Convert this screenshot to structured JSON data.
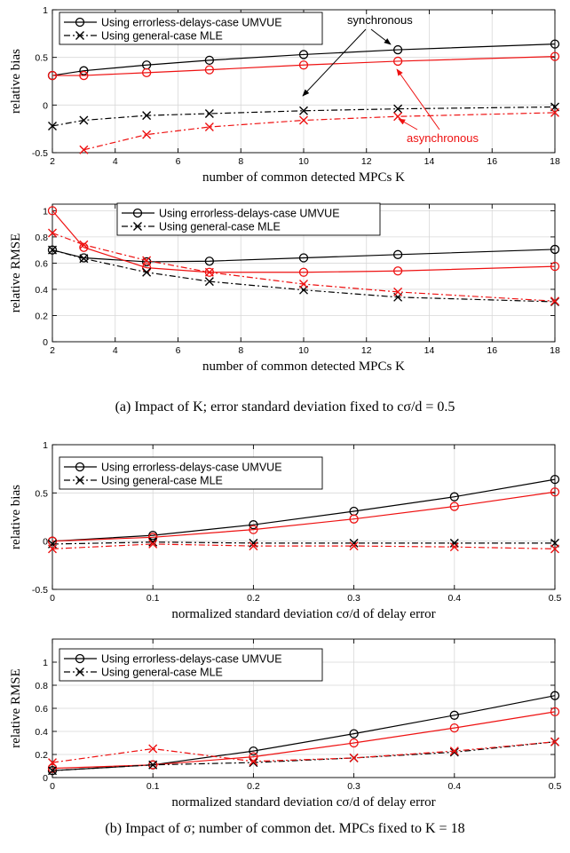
{
  "colors": {
    "synchronous": "#000000",
    "asynchronous": "#ee1111",
    "grid": "#d8d8d8"
  },
  "legend": {
    "umvue": "Using errorless-delays-case UMVUE",
    "mle": "Using general-case MLE"
  },
  "annotations": {
    "synchronous": "synchronous",
    "asynchronous": "asynchronous"
  },
  "captions": {
    "a": "(a) Impact of K; error standard deviation fixed to cσ/d = 0.5",
    "b": "(b) Impact of σ; number of common det. MPCs fixed to K = 18"
  },
  "chart_data": [
    {
      "type": "line",
      "xlabel": "number of common detected MPCs K",
      "ylabel": "relative bias",
      "xlim": [
        2,
        18
      ],
      "ylim": [
        -0.5,
        1
      ],
      "xticks": [
        "2",
        "4",
        "6",
        "8",
        "10",
        "12",
        "14",
        "16",
        "18"
      ],
      "yticks": [
        "-0.5",
        "0",
        "0.5",
        "1"
      ],
      "grid": true,
      "legend_position": "top-left",
      "x": [
        2,
        3,
        5,
        7,
        10,
        13,
        18
      ],
      "series": [
        {
          "estimator": "umvue",
          "group": "synchronous",
          "values": [
            0.31,
            0.36,
            0.42,
            0.47,
            0.53,
            0.58,
            0.64
          ]
        },
        {
          "estimator": "umvue",
          "group": "asynchronous",
          "values": [
            0.31,
            0.31,
            0.34,
            0.37,
            0.42,
            0.46,
            0.51
          ]
        },
        {
          "estimator": "mle",
          "group": "synchronous",
          "values": [
            -0.22,
            -0.16,
            -0.11,
            -0.09,
            -0.06,
            -0.04,
            -0.02
          ]
        },
        {
          "estimator": "mle",
          "group": "asynchronous",
          "values": [
            null,
            -0.47,
            -0.31,
            -0.23,
            -0.16,
            -0.12,
            -0.08
          ]
        }
      ]
    },
    {
      "type": "line",
      "xlabel": "number of common detected MPCs K",
      "ylabel": "relative RMSE",
      "xlim": [
        2,
        18
      ],
      "ylim": [
        0,
        1.05
      ],
      "xticks": [
        "2",
        "4",
        "6",
        "8",
        "10",
        "12",
        "14",
        "16",
        "18"
      ],
      "yticks": [
        "0",
        "0.2",
        "0.4",
        "0.6",
        "0.8",
        "1"
      ],
      "grid": true,
      "legend_position": "top-center",
      "x": [
        2,
        3,
        5,
        7,
        10,
        13,
        18
      ],
      "series": [
        {
          "estimator": "umvue",
          "group": "synchronous",
          "values": [
            0.7,
            0.64,
            0.61,
            0.615,
            0.64,
            0.665,
            0.705
          ]
        },
        {
          "estimator": "umvue",
          "group": "asynchronous",
          "values": [
            1.0,
            0.72,
            0.565,
            0.53,
            0.53,
            0.54,
            0.575
          ]
        },
        {
          "estimator": "mle",
          "group": "synchronous",
          "values": [
            0.7,
            0.635,
            0.53,
            0.46,
            0.395,
            0.34,
            0.305
          ]
        },
        {
          "estimator": "mle",
          "group": "asynchronous",
          "values": [
            0.83,
            0.74,
            0.62,
            0.53,
            0.44,
            0.38,
            0.31
          ]
        }
      ]
    },
    {
      "type": "line",
      "xlabel": "normalized standard deviation cσ/d of delay error",
      "ylabel": "relative bias",
      "xlim": [
        0,
        0.5
      ],
      "ylim": [
        -0.5,
        1
      ],
      "xticks": [
        "0",
        "0.1",
        "0.2",
        "0.3",
        "0.4",
        "0.5"
      ],
      "yticks": [
        "-0.5",
        "0",
        "0.5",
        "1"
      ],
      "grid": true,
      "legend_position": "top-left",
      "x": [
        0,
        0.1,
        0.2,
        0.3,
        0.4,
        0.5
      ],
      "series": [
        {
          "estimator": "umvue",
          "group": "synchronous",
          "values": [
            0.0,
            0.06,
            0.17,
            0.31,
            0.46,
            0.64
          ]
        },
        {
          "estimator": "umvue",
          "group": "asynchronous",
          "values": [
            0.0,
            0.04,
            0.12,
            0.23,
            0.36,
            0.51
          ]
        },
        {
          "estimator": "mle",
          "group": "synchronous",
          "values": [
            -0.03,
            -0.01,
            -0.02,
            -0.02,
            -0.02,
            -0.02
          ]
        },
        {
          "estimator": "mle",
          "group": "asynchronous",
          "values": [
            -0.08,
            -0.03,
            -0.05,
            -0.05,
            -0.06,
            -0.08
          ]
        }
      ]
    },
    {
      "type": "line",
      "xlabel": "normalized standard deviation cσ/d of delay error",
      "ylabel": "relative RMSE",
      "xlim": [
        0,
        0.5
      ],
      "ylim": [
        0,
        1.2
      ],
      "xticks": [
        "0",
        "0.1",
        "0.2",
        "0.3",
        "0.4",
        "0.5"
      ],
      "yticks": [
        "0",
        "0.2",
        "0.4",
        "0.6",
        "0.8",
        "1"
      ],
      "grid": true,
      "legend_position": "top-left",
      "x": [
        0,
        0.1,
        0.2,
        0.3,
        0.4,
        0.5
      ],
      "series": [
        {
          "estimator": "umvue",
          "group": "synchronous",
          "values": [
            0.06,
            0.11,
            0.23,
            0.38,
            0.54,
            0.71
          ]
        },
        {
          "estimator": "umvue",
          "group": "asynchronous",
          "values": [
            0.08,
            0.11,
            0.18,
            0.3,
            0.43,
            0.57
          ]
        },
        {
          "estimator": "mle",
          "group": "synchronous",
          "values": [
            0.06,
            0.11,
            0.13,
            0.17,
            0.22,
            0.31
          ]
        },
        {
          "estimator": "mle",
          "group": "asynchronous",
          "values": [
            0.13,
            0.25,
            0.14,
            0.17,
            0.23,
            0.31
          ]
        }
      ]
    }
  ]
}
